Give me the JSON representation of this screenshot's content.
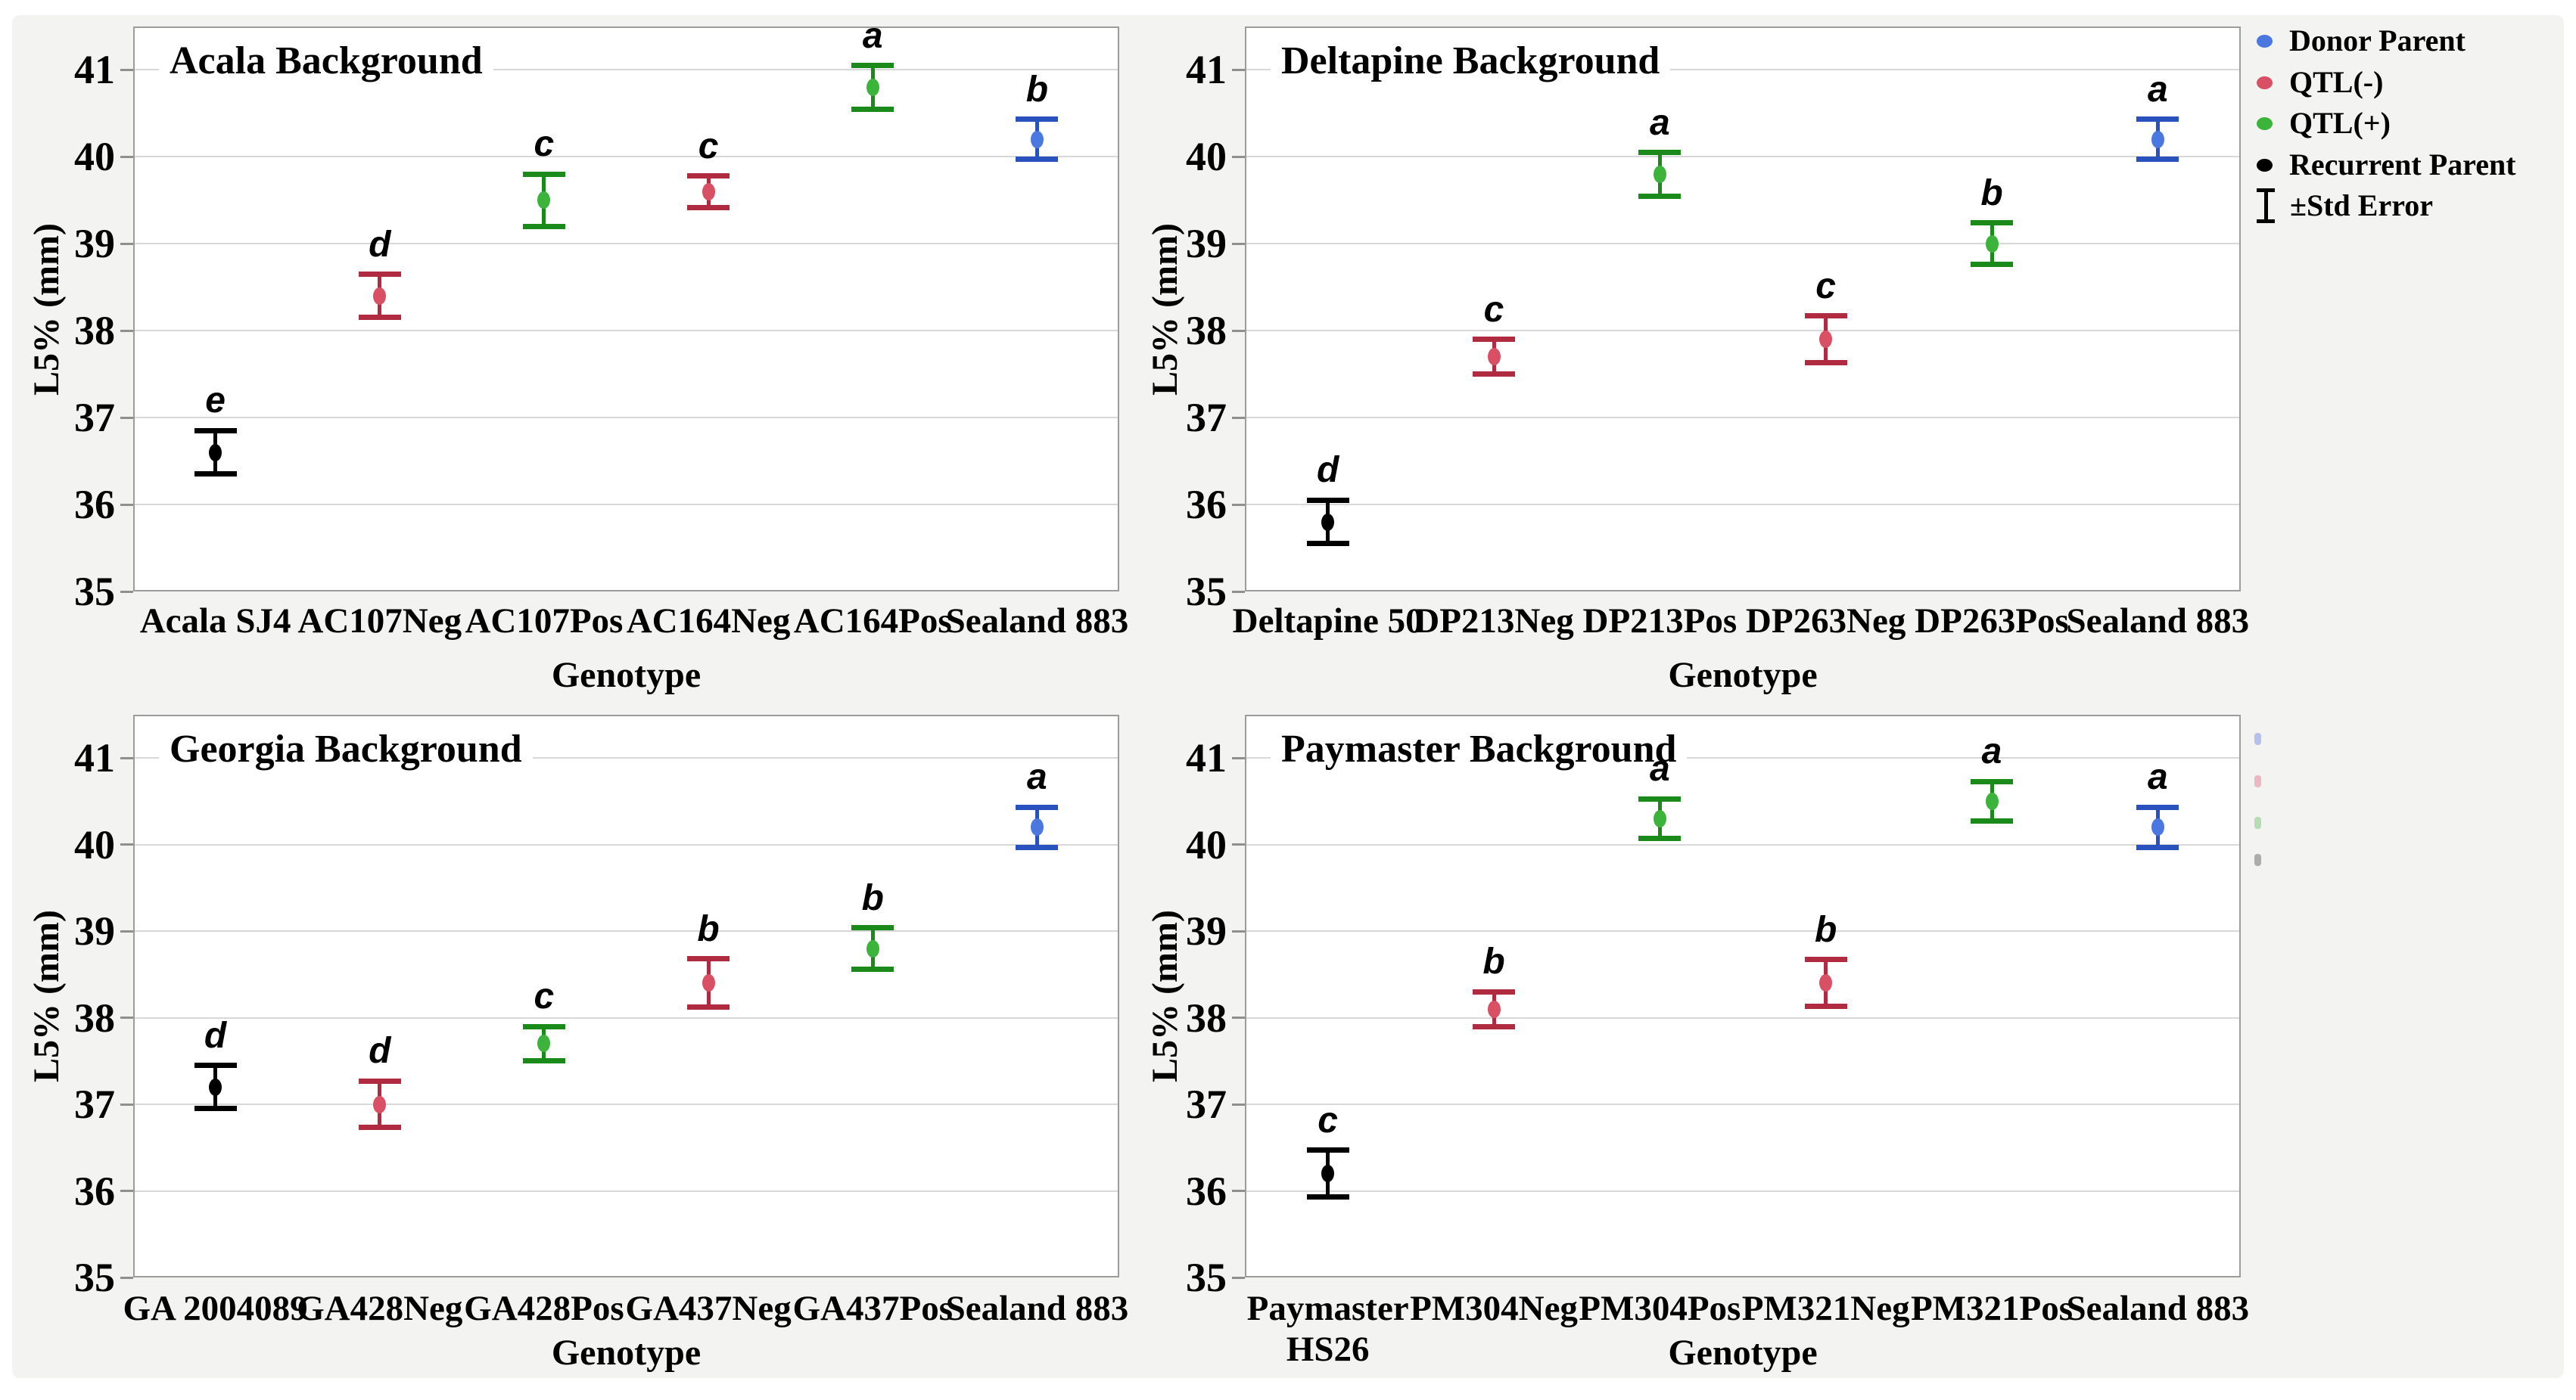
{
  "legend": {
    "items": [
      {
        "label": "Donor Parent",
        "group": "donor_parent",
        "marker": "dot"
      },
      {
        "label": "QTL(-)",
        "group": "qtl_minus",
        "marker": "dot"
      },
      {
        "label": "QTL(+)",
        "group": "qtl_plus",
        "marker": "dot"
      },
      {
        "label": "Recurrent Parent",
        "group": "recurrent_parent",
        "marker": "dot"
      },
      {
        "label": "±Std Error",
        "group": "std_error",
        "marker": "error_bar"
      }
    ]
  },
  "colors": {
    "donor_parent": {
      "dot": "#4a78e0",
      "bar": "#2a52be"
    },
    "qtl_minus": {
      "dot": "#d94f63",
      "bar": "#b02a40"
    },
    "qtl_plus": {
      "dot": "#3cb43c",
      "bar": "#1a8a1a"
    },
    "recurrent_parent": {
      "dot": "#000000",
      "bar": "#000000"
    },
    "figure_background": "#f3f3f1",
    "plot_background": "#ffffff",
    "plot_border": "#9c9c9c",
    "gridline": "#d8d8d8",
    "tick": "#8f8f8f",
    "text": "#000000"
  },
  "chart_data": [
    {
      "type": "scatter",
      "title": "Acala Background",
      "xlabel": "Genotype",
      "ylabel": "L5% (mm)",
      "ylim": [
        35,
        41.5
      ],
      "yticks": [
        35,
        36,
        37,
        38,
        39,
        40,
        41
      ],
      "grid": true,
      "categories": [
        "Acala SJ4",
        "AC107Neg",
        "AC107Pos",
        "AC164Neg",
        "AC164Pos",
        "Sealand 883"
      ],
      "points": [
        {
          "label": "Acala SJ4",
          "value": 36.6,
          "std_error": 0.25,
          "sig_letter": "e",
          "group": "recurrent_parent"
        },
        {
          "label": "AC107Neg",
          "value": 38.4,
          "std_error": 0.25,
          "sig_letter": "d",
          "group": "qtl_minus"
        },
        {
          "label": "AC107Pos",
          "value": 39.5,
          "std_error": 0.3,
          "sig_letter": "c",
          "group": "qtl_plus"
        },
        {
          "label": "AC164Neg",
          "value": 39.6,
          "std_error": 0.18,
          "sig_letter": "c",
          "group": "qtl_minus"
        },
        {
          "label": "AC164Pos",
          "value": 40.8,
          "std_error": 0.25,
          "sig_letter": "a",
          "group": "qtl_plus"
        },
        {
          "label": "Sealand 883",
          "value": 40.2,
          "std_error": 0.23,
          "sig_letter": "b",
          "group": "donor_parent"
        }
      ]
    },
    {
      "type": "scatter",
      "title": "Deltapine Background",
      "xlabel": "Genotype",
      "ylabel": "L5% (mm)",
      "ylim": [
        35,
        41.5
      ],
      "yticks": [
        35,
        36,
        37,
        38,
        39,
        40,
        41
      ],
      "grid": true,
      "categories": [
        "Deltapine 50",
        "DP213Neg",
        "DP213Pos",
        "DP263Neg",
        "DP263Pos",
        "Sealand 883"
      ],
      "points": [
        {
          "label": "Deltapine 50",
          "value": 35.8,
          "std_error": 0.25,
          "sig_letter": "d",
          "group": "recurrent_parent"
        },
        {
          "label": "DP213Neg",
          "value": 37.7,
          "std_error": 0.2,
          "sig_letter": "c",
          "group": "qtl_minus"
        },
        {
          "label": "DP213Pos",
          "value": 39.8,
          "std_error": 0.25,
          "sig_letter": "a",
          "group": "qtl_plus"
        },
        {
          "label": "DP263Neg",
          "value": 37.9,
          "std_error": 0.27,
          "sig_letter": "c",
          "group": "qtl_minus"
        },
        {
          "label": "DP263Pos",
          "value": 39.0,
          "std_error": 0.24,
          "sig_letter": "b",
          "group": "qtl_plus"
        },
        {
          "label": "Sealand 883",
          "value": 40.2,
          "std_error": 0.23,
          "sig_letter": "a",
          "group": "donor_parent"
        }
      ]
    },
    {
      "type": "scatter",
      "title": "Georgia Background",
      "xlabel": "Genotype",
      "ylabel": "L5% (mm)",
      "ylim": [
        35,
        41.5
      ],
      "yticks": [
        35,
        36,
        37,
        38,
        39,
        40,
        41
      ],
      "grid": true,
      "categories": [
        "GA 2004089",
        "GA428Neg",
        "GA428Pos",
        "GA437Neg",
        "GA437Pos",
        "Sealand 883"
      ],
      "points": [
        {
          "label": "GA 2004089",
          "value": 37.2,
          "std_error": 0.25,
          "sig_letter": "d",
          "group": "recurrent_parent"
        },
        {
          "label": "GA428Neg",
          "value": 37.0,
          "std_error": 0.27,
          "sig_letter": "d",
          "group": "qtl_minus"
        },
        {
          "label": "GA428Pos",
          "value": 37.7,
          "std_error": 0.2,
          "sig_letter": "c",
          "group": "qtl_plus"
        },
        {
          "label": "GA437Neg",
          "value": 38.4,
          "std_error": 0.28,
          "sig_letter": "b",
          "group": "qtl_minus"
        },
        {
          "label": "GA437Pos",
          "value": 38.8,
          "std_error": 0.24,
          "sig_letter": "b",
          "group": "qtl_plus"
        },
        {
          "label": "Sealand 883",
          "value": 40.2,
          "std_error": 0.23,
          "sig_letter": "a",
          "group": "donor_parent"
        }
      ]
    },
    {
      "type": "scatter",
      "title": "Paymaster Background",
      "xlabel": "Genotype",
      "ylabel": "L5% (mm)",
      "ylim": [
        35,
        41.5
      ],
      "yticks": [
        35,
        36,
        37,
        38,
        39,
        40,
        41
      ],
      "grid": true,
      "categories": [
        "Paymaster\nHS26",
        "PM304Neg",
        "PM304Pos",
        "PM321Neg",
        "PM321Pos",
        "Sealand 883"
      ],
      "points": [
        {
          "label": "Paymaster HS26",
          "value": 36.2,
          "std_error": 0.27,
          "sig_letter": "c",
          "group": "recurrent_parent"
        },
        {
          "label": "PM304Neg",
          "value": 38.1,
          "std_error": 0.2,
          "sig_letter": "b",
          "group": "qtl_minus"
        },
        {
          "label": "PM304Pos",
          "value": 40.3,
          "std_error": 0.23,
          "sig_letter": "a",
          "group": "qtl_plus"
        },
        {
          "label": "PM321Neg",
          "value": 38.4,
          "std_error": 0.27,
          "sig_letter": "b",
          "group": "qtl_minus"
        },
        {
          "label": "PM321Pos",
          "value": 40.5,
          "std_error": 0.23,
          "sig_letter": "a",
          "group": "qtl_plus"
        },
        {
          "label": "Sealand 883",
          "value": 40.2,
          "std_error": 0.23,
          "sig_letter": "a",
          "group": "donor_parent"
        }
      ]
    }
  ],
  "edge_artifacts": {
    "note": "cropped legend markers at right edge of bottom-right panel",
    "x": 2983,
    "marks": [
      {
        "color": "#a9b7ea",
        "y": 977
      },
      {
        "color": "#e9abb7",
        "y": 1033
      },
      {
        "color": "#aad7aa",
        "y": 1088
      },
      {
        "color": "#9f9f9f",
        "y": 1137
      }
    ]
  }
}
